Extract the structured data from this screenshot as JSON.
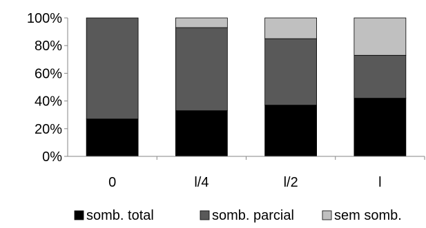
{
  "chart_data": {
    "type": "bar",
    "stacked": true,
    "categories": [
      "0",
      "l/4",
      "l/2",
      "l"
    ],
    "series": [
      {
        "name": "somb. total",
        "color": "#000000",
        "values": [
          27,
          33,
          37,
          42
        ]
      },
      {
        "name": "somb. parcial",
        "color": "#595959",
        "values": [
          73,
          60,
          48,
          31
        ]
      },
      {
        "name": "sem somb.",
        "color": "#c0c0c0",
        "values": [
          0,
          7,
          15,
          27
        ]
      }
    ],
    "y_ticks": [
      "0%",
      "20%",
      "40%",
      "60%",
      "80%",
      "100%"
    ],
    "ylim": [
      0,
      100
    ],
    "title": "",
    "xlabel": "",
    "ylabel": "",
    "grid": false,
    "legend": "bottom"
  }
}
